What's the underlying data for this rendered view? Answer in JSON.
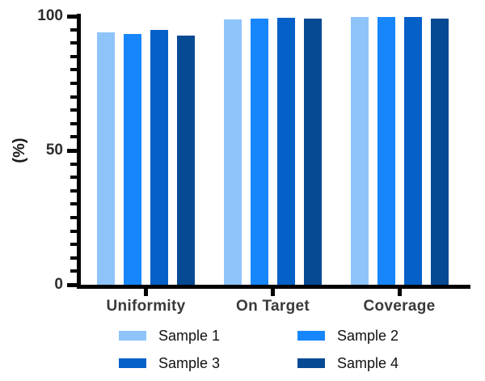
{
  "figure": {
    "background": "#ffffff",
    "axis_color": "#000000",
    "tick_text_color": "#2d2d2d",
    "category_text_color": "#3a3a3a",
    "legend_text_color": "#111111"
  },
  "chart_data": {
    "type": "bar",
    "title": "",
    "xlabel": "",
    "ylabel": "(%)",
    "categories": [
      "Uniformity",
      "On Target",
      "Coverage"
    ],
    "series": [
      {
        "name": "Sample 1",
        "color": "#8FC4FB",
        "values": [
          93.9,
          98.8,
          99.6
        ]
      },
      {
        "name": "Sample 2",
        "color": "#1886FB",
        "values": [
          93.3,
          99.1,
          99.8
        ]
      },
      {
        "name": "Sample 3",
        "color": "#0560C8",
        "values": [
          95.0,
          99.4,
          99.7
        ]
      },
      {
        "name": "Sample 4",
        "color": "#074A94",
        "values": [
          92.8,
          99.0,
          99.2
        ]
      }
    ],
    "ylim": [
      0,
      100
    ],
    "yticks_major": [
      0,
      50,
      100
    ],
    "ytick_labels": [
      "0",
      "50",
      "100"
    ],
    "ytick_minor_step": 5,
    "grid": false,
    "legend_position": "bottom",
    "legend_columns": 2
  }
}
